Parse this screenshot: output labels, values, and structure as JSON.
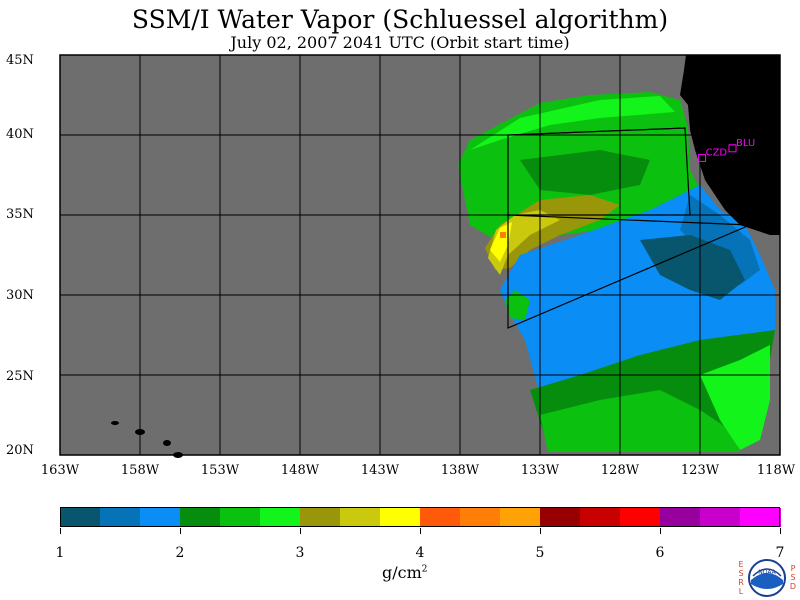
{
  "title": "SSM/I Water Vapor (Schluessel algorithm)",
  "subtitle": "July 02, 2007  2041 UTC  (Orbit start time)",
  "lat_labels": [
    "45N",
    "40N",
    "35N",
    "30N",
    "25N",
    "20N"
  ],
  "lon_labels": [
    "163W",
    "158W",
    "153W",
    "148W",
    "143W",
    "138W",
    "133W",
    "128W",
    "123W",
    "118W"
  ],
  "stations": [
    {
      "code": "CZD",
      "lat": 38.6,
      "lon": -122.9
    },
    {
      "code": "BLU",
      "lat": 39.2,
      "lon": -121.0
    }
  ],
  "colorbar": {
    "labels": [
      "1",
      "2",
      "3",
      "4",
      "5",
      "6",
      "7"
    ],
    "colors": [
      "#07566e",
      "#0672b8",
      "#0a8df5",
      "#078d0e",
      "#0cc00f",
      "#12f41a",
      "#9a9609",
      "#cbc90e",
      "#ffff00",
      "#fe5a0a",
      "#fe7e08",
      "#fea206",
      "#970000",
      "#c80000",
      "#fe0000",
      "#97009e",
      "#c800cb",
      "#fe00fe"
    ],
    "units": "g/cm",
    "units_exp": "2"
  },
  "colors": {
    "land": "#000000",
    "no_data": "#6e6e6e",
    "station": "#ff00ff",
    "grid": "#000000"
  },
  "logo": {
    "name": "noaa-logo",
    "left_letters": [
      "E",
      "S",
      "R",
      "L"
    ],
    "right_letters": [
      "P",
      "S",
      "D"
    ],
    "center_text": "NOAA"
  }
}
